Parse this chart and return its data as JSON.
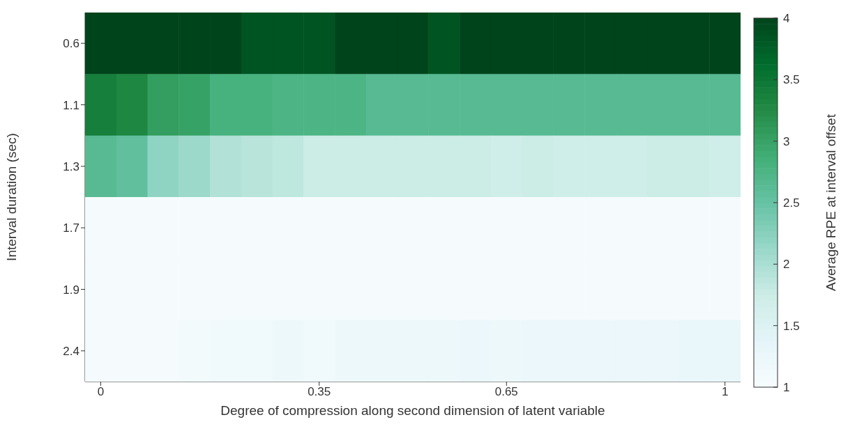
{
  "chart_data": {
    "type": "heatmap",
    "xlabel": "Degree of compression along second dimension of latent variable",
    "ylabel": "Interval duration (sec)",
    "clabel": "Average RPE at interval offset",
    "categories": [
      "0",
      null,
      null,
      null,
      null,
      null,
      null,
      "0.35",
      null,
      null,
      null,
      null,
      null,
      "0.65",
      null,
      null,
      null,
      null,
      null,
      null,
      "1"
    ],
    "y_categories": [
      "0.6",
      "1.1",
      "1.3",
      "1.7",
      "1.9",
      "2.4"
    ],
    "cells": [
      [
        4,
        4,
        4,
        4,
        4,
        3.85,
        3.85,
        3.85,
        4,
        4,
        4,
        3.85,
        4,
        4,
        4,
        4,
        4,
        4,
        4,
        4,
        4
      ],
      [
        3.4,
        3.3,
        3.05,
        3,
        2.8,
        2.8,
        2.75,
        2.75,
        2.75,
        2.65,
        2.65,
        2.65,
        2.65,
        2.65,
        2.65,
        2.65,
        2.65,
        2.65,
        2.65,
        2.65,
        2.65
      ],
      [
        2.65,
        2.55,
        2.2,
        2.1,
        1.95,
        1.9,
        1.85,
        1.75,
        1.75,
        1.75,
        1.75,
        1.75,
        1.75,
        1.7,
        1.75,
        1.7,
        1.7,
        1.7,
        1.75,
        1.75,
        1.7
      ],
      [
        1.05,
        1.05,
        1.05,
        1.05,
        1.05,
        1.05,
        1.05,
        1.05,
        1.05,
        1.05,
        1.05,
        1.05,
        1.05,
        1.05,
        1.05,
        1.05,
        1.05,
        1.05,
        1.05,
        1.05,
        1.05
      ],
      [
        1.05,
        1.05,
        1.05,
        1.05,
        1.05,
        1.05,
        1.05,
        1.05,
        1.05,
        1.05,
        1.05,
        1.05,
        1.05,
        1.05,
        1.05,
        1.05,
        1.05,
        1.05,
        1.05,
        1.05,
        1.05
      ],
      [
        1.05,
        1.05,
        1.05,
        1.1,
        1.15,
        1.15,
        1.2,
        1.15,
        1.2,
        1.2,
        1.2,
        1.2,
        1.25,
        1.2,
        1.25,
        1.25,
        1.25,
        1.25,
        1.25,
        1.3,
        1.3
      ]
    ],
    "clim": [
      1,
      4
    ],
    "cticks": [
      1,
      1.5,
      2,
      2.5,
      3,
      3.5,
      4
    ]
  }
}
